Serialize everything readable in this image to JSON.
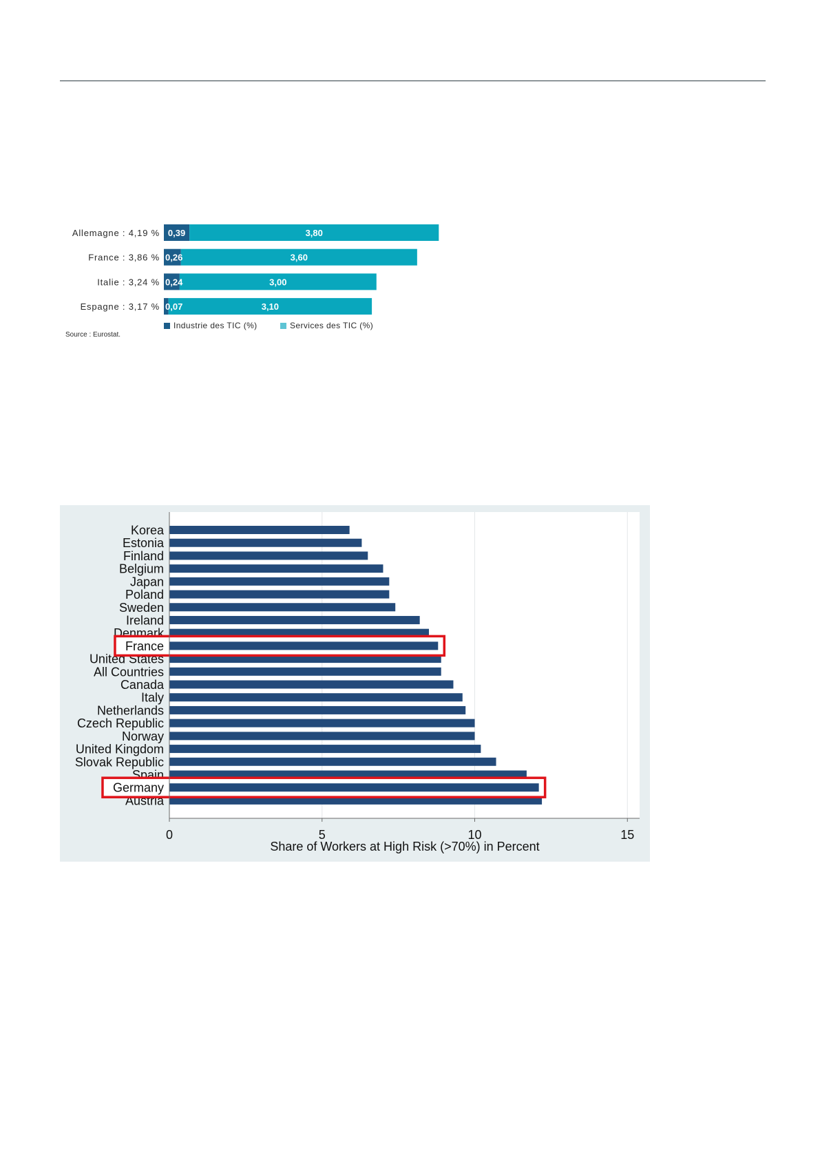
{
  "document": {
    "rule_color": "#2e3d42"
  },
  "chart_data": [
    {
      "type": "bar",
      "orientation": "horizontal",
      "stacked": true,
      "categories": [
        "Allemagne : 4,19 %",
        "France : 3,86 %",
        "Italie : 3,24 %",
        "Espagne : 3,17 %"
      ],
      "series": [
        {
          "name": "Industrie des TIC (%)",
          "values": [
            0.39,
            0.26,
            0.24,
            0.07
          ],
          "labels": [
            "0,39",
            "0,26",
            "0,24",
            "0,07"
          ],
          "color": "#1c5d8a",
          "legend_color": "#1c5d8a"
        },
        {
          "name": "Services des TIC (%)",
          "values": [
            3.8,
            3.6,
            3.0,
            3.1
          ],
          "labels": [
            "3,80",
            "3,60",
            "3,00",
            "3,10"
          ],
          "color": "#09a7bd",
          "legend_color": "#5ec4d4"
        }
      ],
      "legend": "bottom-left",
      "grid": false,
      "source": "Source : Eurostat."
    },
    {
      "type": "bar",
      "orientation": "horizontal",
      "categories": [
        "Korea",
        "Estonia",
        "Finland",
        "Belgium",
        "Japan",
        "Poland",
        "Sweden",
        "Ireland",
        "Denmark",
        "France",
        "United States",
        "All Countries",
        "Canada",
        "Italy",
        "Netherlands",
        "Czech Republic",
        "Norway",
        "United Kingdom",
        "Slovak Republic",
        "Spain",
        "Germany",
        "Austria"
      ],
      "values": [
        5.9,
        6.3,
        6.5,
        7.0,
        7.2,
        7.2,
        7.4,
        8.2,
        8.5,
        8.8,
        8.9,
        8.9,
        9.3,
        9.6,
        9.7,
        10.0,
        10.0,
        10.2,
        10.7,
        11.7,
        12.1,
        12.2
      ],
      "highlighted": [
        false,
        false,
        false,
        false,
        false,
        false,
        false,
        false,
        false,
        true,
        false,
        false,
        false,
        false,
        false,
        false,
        false,
        false,
        false,
        false,
        true,
        false
      ],
      "xlabel": "Share of Workers at High Risk (>70%) in Percent",
      "xlim": [
        0,
        15.4
      ],
      "xticks": [
        0,
        5,
        10,
        15
      ],
      "xtick_labels": [
        "0",
        "5",
        "10",
        "15"
      ],
      "grid": "vertical",
      "bar_color": "#234a7a",
      "highlight_color": "#e0141b",
      "panel_color": "#e7eef0",
      "plot_color": "#ffffff",
      "grid_color": "#e3e6e8",
      "axis_color": "#6a6a6a"
    }
  ]
}
